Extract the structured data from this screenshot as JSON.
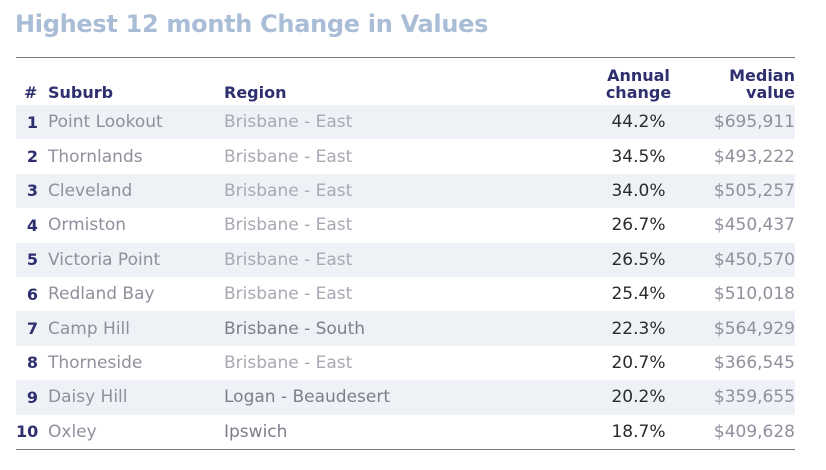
{
  "title": "Highest 12 month Change in Values",
  "headers": {
    "rank": "#",
    "suburb": "Suburb",
    "region": "Region",
    "change_line1": "Annual",
    "change_line2": "change",
    "median_line1": "Median",
    "median_line2": "value"
  },
  "rows": [
    {
      "rank": "1",
      "suburb": "Point Lookout",
      "region": "Brisbane - East",
      "change": "44.2%",
      "median": "$695,911"
    },
    {
      "rank": "2",
      "suburb": "Thornlands",
      "region": "Brisbane - East",
      "change": "34.5%",
      "median": "$493,222"
    },
    {
      "rank": "3",
      "suburb": "Cleveland",
      "region": "Brisbane - East",
      "change": "34.0%",
      "median": "$505,257"
    },
    {
      "rank": "4",
      "suburb": "Ormiston",
      "region": "Brisbane - East",
      "change": "26.7%",
      "median": "$450,437"
    },
    {
      "rank": "5",
      "suburb": "Victoria Point",
      "region": "Brisbane - East",
      "change": "26.5%",
      "median": "$450,570"
    },
    {
      "rank": "6",
      "suburb": "Redland Bay",
      "region": "Brisbane - East",
      "change": "25.4%",
      "median": "$510,018"
    },
    {
      "rank": "7",
      "suburb": "Camp Hill",
      "region": "Brisbane - South",
      "change": "22.3%",
      "median": "$564,929"
    },
    {
      "rank": "8",
      "suburb": "Thorneside",
      "region": "Brisbane - East",
      "change": "20.7%",
      "median": "$366,545"
    },
    {
      "rank": "9",
      "suburb": "Daisy Hill",
      "region": "Logan - Beaudesert",
      "change": "20.2%",
      "median": "$359,655"
    },
    {
      "rank": "10",
      "suburb": "Oxley",
      "region": "Ipswich",
      "change": "18.7%",
      "median": "$409,628"
    }
  ]
}
